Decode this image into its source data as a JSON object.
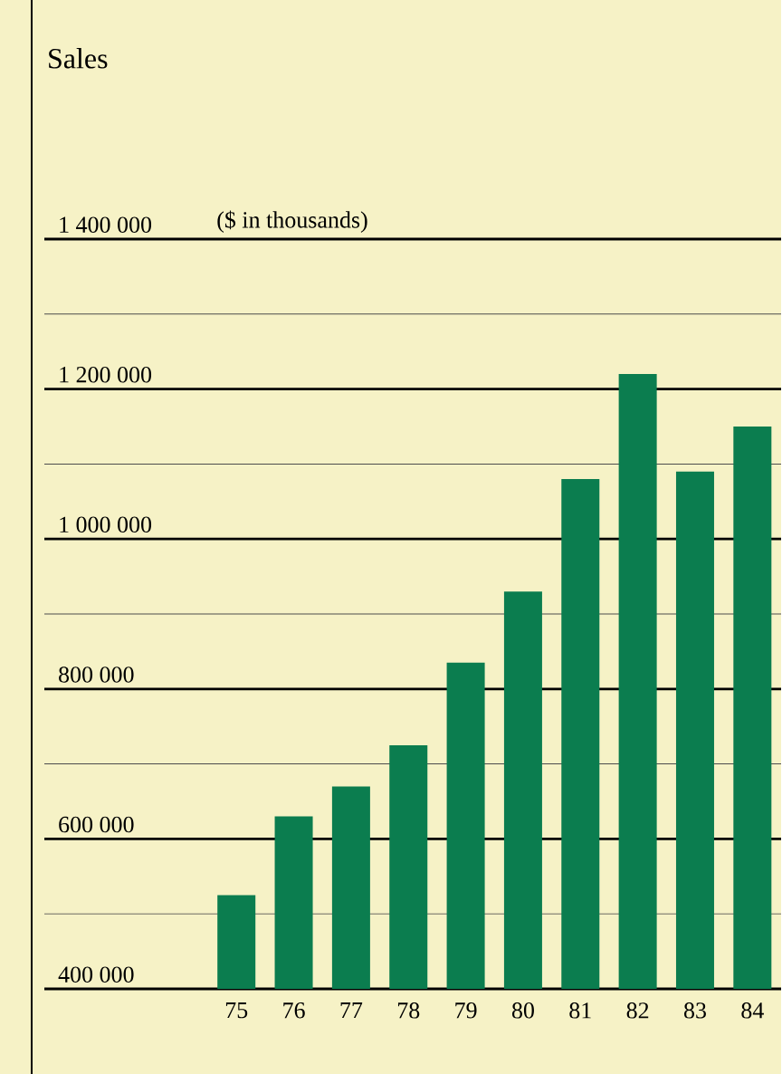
{
  "chart_data": {
    "type": "bar",
    "title": "Sales",
    "ylabel": "($ in thousands)",
    "categories": [
      "75",
      "76",
      "77",
      "78",
      "79",
      "80",
      "81",
      "82",
      "83",
      "84"
    ],
    "values": [
      525000,
      630000,
      670000,
      725000,
      835000,
      930000,
      1080000,
      1220000,
      1090000,
      1150000
    ],
    "color": "#0b7d4f",
    "ylim": [
      400000,
      1400000
    ],
    "yticks": [
      {
        "value": 400000,
        "label": "400 000"
      },
      {
        "value": 500000,
        "label": null
      },
      {
        "value": 600000,
        "label": "600 000"
      },
      {
        "value": 700000,
        "label": null
      },
      {
        "value": 800000,
        "label": "800 000"
      },
      {
        "value": 900000,
        "label": null
      },
      {
        "value": 1000000,
        "label": "1 000 000"
      },
      {
        "value": 1100000,
        "label": null
      },
      {
        "value": 1200000,
        "label": "1 200 000"
      },
      {
        "value": 1300000,
        "label": null
      },
      {
        "value": 1400000,
        "label": "1 400 000"
      }
    ],
    "grid": "y"
  }
}
